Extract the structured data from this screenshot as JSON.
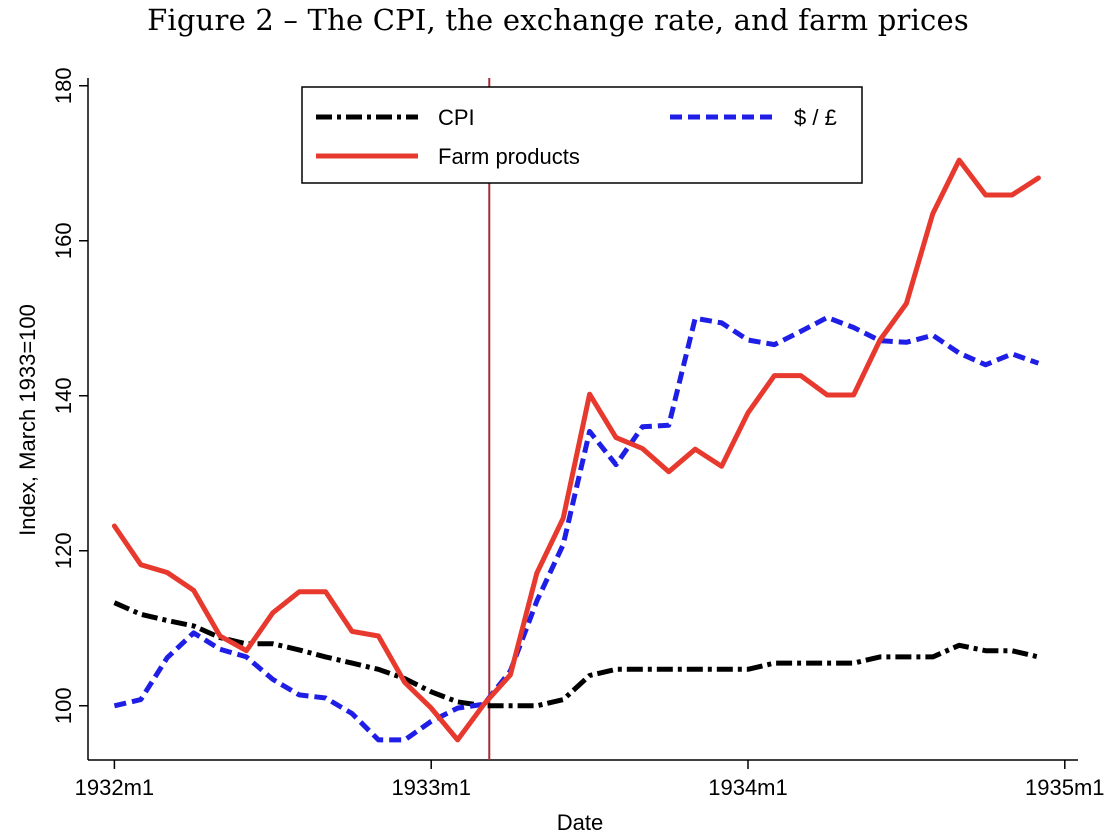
{
  "chart_data": {
    "type": "line",
    "title": "Figure 2 – The CPI, the exchange rate, and farm prices",
    "xlabel": "Date",
    "ylabel": "Index, March 1933=100",
    "ylim": [
      93,
      181
    ],
    "xlim": [
      -1,
      36.5
    ],
    "x_ticks": [
      0,
      12,
      24,
      36
    ],
    "x_tick_labels": [
      "1932m1",
      "1933m1",
      "1934m1",
      "1935m1"
    ],
    "y_ticks": [
      100,
      120,
      140,
      160,
      180
    ],
    "y_tick_labels": [
      "100",
      "120",
      "140",
      "160",
      "180"
    ],
    "vline_x": 14.2,
    "vline_color": "#a52a3a",
    "legend": {
      "position": "top-center",
      "entries": [
        {
          "label": "CPI",
          "series": "cpi"
        },
        {
          "label": "$ / £",
          "series": "usdgbp"
        },
        {
          "label": "Farm products",
          "series": "farm"
        }
      ]
    },
    "series": [
      {
        "key": "cpi",
        "name": "CPI",
        "color": "#000000",
        "style": "dashdot",
        "values": [
          113.3,
          111.8,
          111.0,
          110.3,
          108.8,
          108.0,
          108.0,
          107.2,
          106.3,
          105.5,
          104.7,
          103.5,
          101.8,
          100.5,
          100.0,
          100.0,
          100.0,
          100.8,
          103.9,
          104.7,
          104.7,
          104.7,
          104.7,
          104.7,
          104.7,
          105.5,
          105.5,
          105.5,
          105.5,
          106.3,
          106.3,
          106.3,
          107.8,
          107.1,
          107.1,
          106.3
        ]
      },
      {
        "key": "usdgbp",
        "name": "$ / £",
        "color": "#1e1ee6",
        "style": "dashed",
        "values": [
          100.0,
          100.8,
          106.2,
          109.4,
          107.3,
          106.3,
          103.4,
          101.4,
          101.0,
          99.0,
          95.6,
          95.6,
          98.0,
          99.7,
          100.2,
          104.5,
          113.5,
          120.8,
          135.4,
          131.1,
          136.0,
          136.2,
          150.0,
          149.4,
          147.2,
          146.6,
          148.3,
          150.1,
          148.8,
          147.1,
          146.9,
          147.8,
          145.5,
          144.0,
          145.4,
          144.2
        ]
      },
      {
        "key": "farm",
        "name": "Farm products",
        "color": "#e8392e",
        "style": "solid",
        "values": [
          123.2,
          118.2,
          117.2,
          114.9,
          109.0,
          107.1,
          112.0,
          114.7,
          114.7,
          109.6,
          109.0,
          103.0,
          99.7,
          95.6,
          100.2,
          104.0,
          117.1,
          124.2,
          140.2,
          134.6,
          133.2,
          130.2,
          133.1,
          130.9,
          137.8,
          142.6,
          142.6,
          140.1,
          140.1,
          147.2,
          151.9,
          163.5,
          170.4,
          165.9,
          165.9,
          168.1
        ]
      }
    ]
  }
}
